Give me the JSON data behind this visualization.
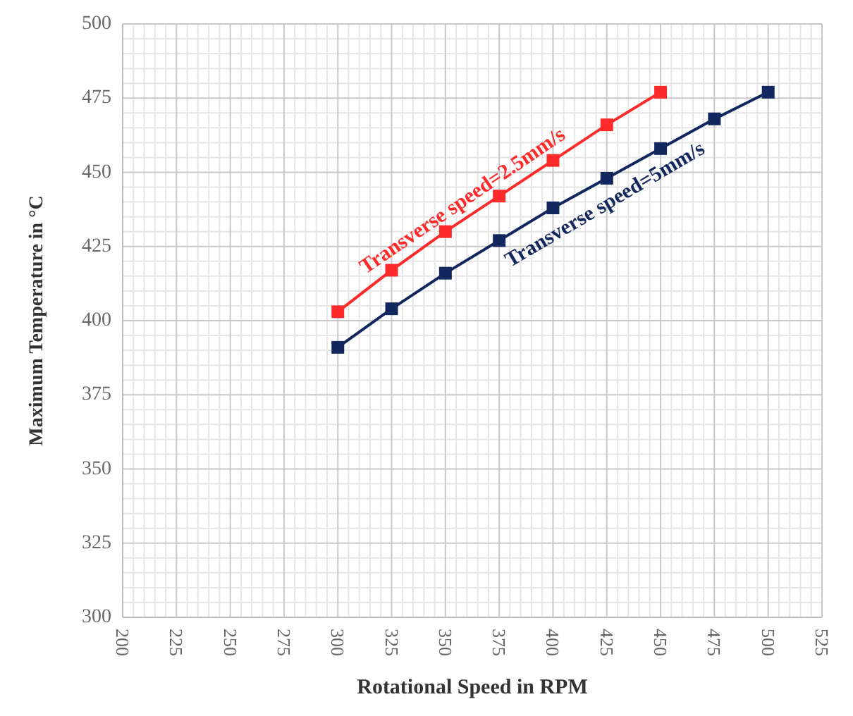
{
  "chart_data": {
    "type": "line",
    "xlabel": "Rotational Speed in RPM",
    "ylabel": "Maximum Temperature in °C",
    "x": [
      300,
      325,
      350,
      375,
      400,
      425,
      450,
      475,
      500
    ],
    "series": [
      {
        "name": "Transverse speed=2.5mm/s",
        "color": "#ff2a2a",
        "values": [
          403,
          417,
          430,
          442,
          454,
          466,
          477,
          null,
          null
        ]
      },
      {
        "name": "Transverse speed=5mm/s",
        "color": "#12275e",
        "values": [
          391,
          404,
          416,
          427,
          438,
          448,
          458,
          468,
          477
        ]
      }
    ],
    "xlim": [
      200,
      525
    ],
    "xticks": [
      200,
      225,
      250,
      275,
      300,
      325,
      350,
      375,
      400,
      425,
      450,
      475,
      500,
      525
    ],
    "ylim": [
      300,
      500
    ],
    "yticks": [
      300,
      325,
      350,
      375,
      400,
      425,
      450,
      475,
      500
    ],
    "grid": true,
    "marker": "square",
    "line_style": "solid"
  }
}
